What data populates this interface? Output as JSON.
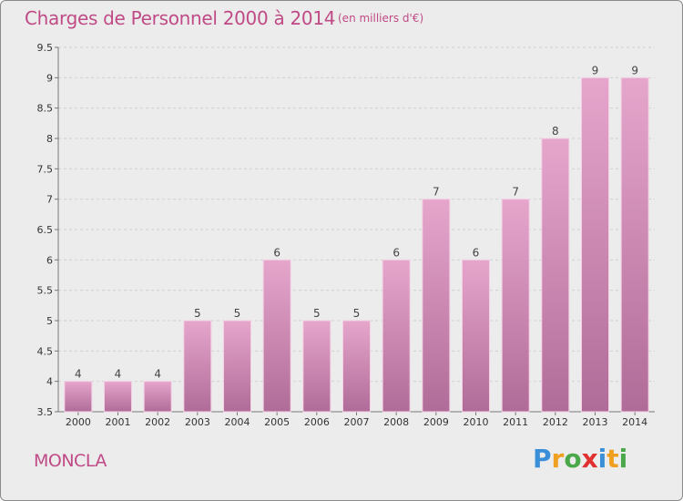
{
  "header": {
    "title": "Charges de Personnel 2000 à 2014",
    "subtitle": "(en milliers d'€)"
  },
  "footer": {
    "commune": "MONCLA",
    "logo_text": "Proxiti",
    "logo_letters": [
      "P",
      "r",
      "o",
      "x",
      "i",
      "t",
      "i"
    ],
    "logo_colors": [
      "#3a8fd8",
      "#f0a020",
      "#4aa84a",
      "#e03030",
      "#3a8fd8",
      "#f0a020",
      "#4aa84a"
    ]
  },
  "colors": {
    "bar_top": "#e6a6cc",
    "bar_bottom": "#b06c98",
    "text_accent": "#c04a86"
  },
  "chart_data": {
    "type": "bar",
    "categories": [
      "2000",
      "2001",
      "2002",
      "2003",
      "2004",
      "2005",
      "2006",
      "2007",
      "2008",
      "2009",
      "2010",
      "2011",
      "2012",
      "2013",
      "2014"
    ],
    "values": [
      4,
      4,
      4,
      5,
      5,
      6,
      5,
      5,
      6,
      7,
      6,
      7,
      8,
      9,
      9
    ],
    "value_labels": [
      "4",
      "4",
      "4",
      "5",
      "5",
      "6",
      "5",
      "5",
      "6",
      "7",
      "6",
      "7",
      "8",
      "9",
      "9"
    ],
    "y_ticks": [
      "3.5",
      "4",
      "4.5",
      "5",
      "5.5",
      "6",
      "6.5",
      "7",
      "7.5",
      "8",
      "8.5",
      "9",
      "9.5"
    ],
    "ylim": [
      3.5,
      9.5
    ],
    "xlabel": "",
    "ylabel": "",
    "grid": true,
    "legend": "none"
  }
}
